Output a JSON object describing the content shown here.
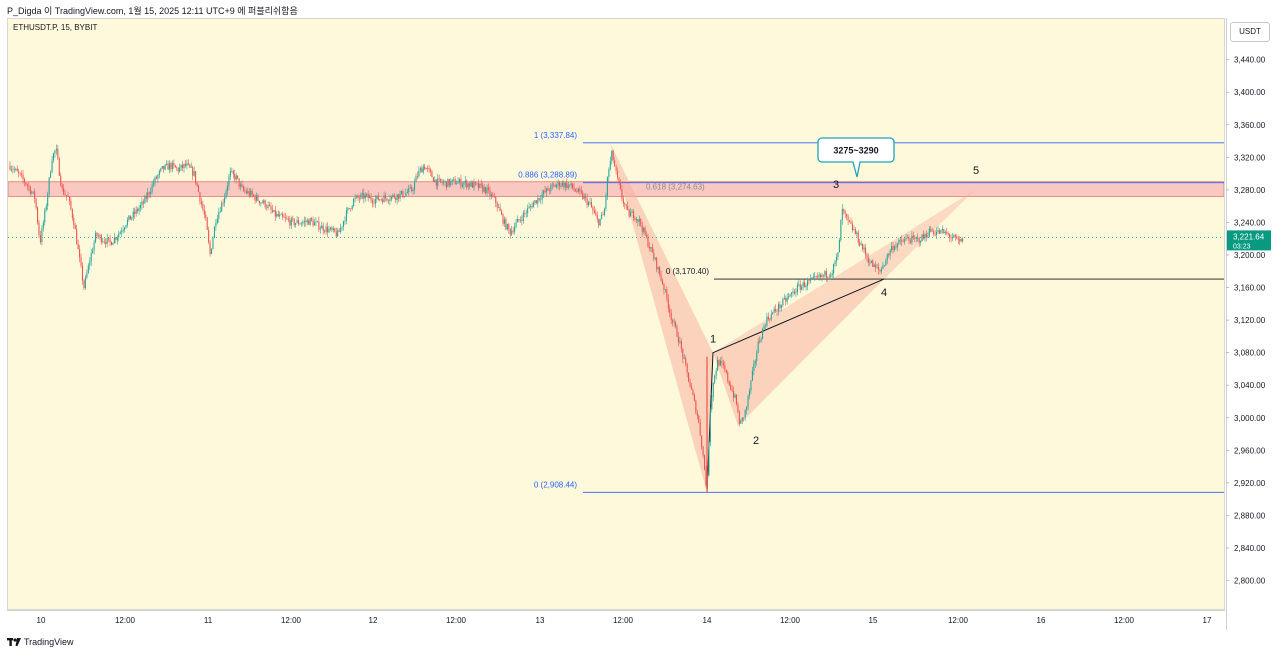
{
  "header": {
    "attribution": "P_Digda 이 TradingView.com, 1월 15, 2025 12:11 UTC+9 에 퍼블리쉬함음"
  },
  "symbol_label": "ETHUSDT.P, 15, BYBIT",
  "currency_button": "USDT",
  "footer": {
    "brand": "TradingView"
  },
  "last_price": {
    "value": "3,221.64",
    "countdown": "03:23",
    "color": "#089981"
  },
  "callout": {
    "label": "3275~3290",
    "border_color": "#21a4b8"
  },
  "colors": {
    "pane_bg": "#fff9dc",
    "up": "#26a69a",
    "down": "#ef5350",
    "fib": "#2962ff",
    "zone": "#f7b7b7",
    "pattern": "#f8b3a0"
  },
  "chart_data": {
    "type": "candlestick",
    "title": "",
    "ylim": [
      2765,
      3490
    ],
    "y_ticks": [
      2800,
      2840,
      2880,
      2920,
      2960,
      3000,
      3040,
      3080,
      3120,
      3160,
      3200,
      3240,
      3280,
      3320,
      3360,
      3400,
      3440
    ],
    "y_tick_labels": [
      "2,800.00",
      "2,840.00",
      "2,880.00",
      "2,920.00",
      "2,960.00",
      "3,000.00",
      "3,040.00",
      "3,080.00",
      "3,120.00",
      "3,160.00",
      "3,200.00",
      "3,240.00",
      "3,280.00",
      "3,320.00",
      "3,360.00",
      "3,400.00",
      "3,440.00"
    ],
    "x_ticks": [
      {
        "label": "10",
        "t": 31
      },
      {
        "label": "12:00",
        "t": 115
      },
      {
        "label": "11",
        "t": 198
      },
      {
        "label": "12:00",
        "t": 281
      },
      {
        "label": "12",
        "t": 363
      },
      {
        "label": "12:00",
        "t": 446
      },
      {
        "label": "13",
        "t": 530
      },
      {
        "label": "12:00",
        "t": 613
      },
      {
        "label": "14",
        "t": 697
      },
      {
        "label": "12:00",
        "t": 780
      },
      {
        "label": "15",
        "t": 863
      },
      {
        "label": "12:00",
        "t": 948
      },
      {
        "label": "16",
        "t": 1031
      },
      {
        "label": "12:00",
        "t": 1114
      },
      {
        "label": "17",
        "t": 1197
      }
    ],
    "price_path": [
      [
        0,
        3310
      ],
      [
        8,
        3300
      ],
      [
        18,
        3285
      ],
      [
        25,
        3270
      ],
      [
        30,
        3215
      ],
      [
        36,
        3260
      ],
      [
        42,
        3320
      ],
      [
        46,
        3330
      ],
      [
        52,
        3280
      ],
      [
        58,
        3270
      ],
      [
        64,
        3240
      ],
      [
        70,
        3190
      ],
      [
        74,
        3160
      ],
      [
        80,
        3195
      ],
      [
        86,
        3225
      ],
      [
        92,
        3220
      ],
      [
        100,
        3215
      ],
      [
        108,
        3225
      ],
      [
        116,
        3240
      ],
      [
        124,
        3250
      ],
      [
        134,
        3265
      ],
      [
        144,
        3290
      ],
      [
        152,
        3305
      ],
      [
        160,
        3310
      ],
      [
        168,
        3305
      ],
      [
        176,
        3310
      ],
      [
        184,
        3300
      ],
      [
        190,
        3270
      ],
      [
        196,
        3240
      ],
      [
        200,
        3200
      ],
      [
        206,
        3245
      ],
      [
        214,
        3270
      ],
      [
        220,
        3300
      ],
      [
        226,
        3295
      ],
      [
        232,
        3280
      ],
      [
        240,
        3275
      ],
      [
        248,
        3268
      ],
      [
        256,
        3262
      ],
      [
        264,
        3250
      ],
      [
        272,
        3245
      ],
      [
        282,
        3240
      ],
      [
        292,
        3240
      ],
      [
        300,
        3242
      ],
      [
        310,
        3235
      ],
      [
        320,
        3230
      ],
      [
        328,
        3225
      ],
      [
        336,
        3250
      ],
      [
        344,
        3268
      ],
      [
        354,
        3272
      ],
      [
        364,
        3268
      ],
      [
        374,
        3270
      ],
      [
        384,
        3272
      ],
      [
        394,
        3275
      ],
      [
        402,
        3280
      ],
      [
        408,
        3300
      ],
      [
        414,
        3310
      ],
      [
        420,
        3300
      ],
      [
        426,
        3290
      ],
      [
        436,
        3288
      ],
      [
        446,
        3290
      ],
      [
        456,
        3288
      ],
      [
        466,
        3285
      ],
      [
        476,
        3280
      ],
      [
        486,
        3265
      ],
      [
        494,
        3240
      ],
      [
        500,
        3228
      ],
      [
        506,
        3238
      ],
      [
        514,
        3250
      ],
      [
        522,
        3262
      ],
      [
        530,
        3272
      ],
      [
        540,
        3282
      ],
      [
        550,
        3288
      ],
      [
        560,
        3285
      ],
      [
        570,
        3275
      ],
      [
        580,
        3262
      ],
      [
        588,
        3240
      ],
      [
        594,
        3250
      ],
      [
        598,
        3300
      ],
      [
        602,
        3325
      ],
      [
        606,
        3300
      ],
      [
        612,
        3270
      ],
      [
        618,
        3250
      ],
      [
        624,
        3250
      ],
      [
        630,
        3240
      ],
      [
        638,
        3215
      ],
      [
        646,
        3190
      ],
      [
        654,
        3160
      ],
      [
        662,
        3120
      ],
      [
        668,
        3100
      ],
      [
        676,
        3060
      ],
      [
        682,
        3030
      ],
      [
        688,
        3000
      ],
      [
        692,
        2965
      ],
      [
        697,
        2910
      ],
      [
        700,
        3010
      ],
      [
        704,
        3050
      ],
      [
        708,
        3070
      ],
      [
        714,
        3060
      ],
      [
        720,
        3040
      ],
      [
        726,
        3020
      ],
      [
        730,
        2990
      ],
      [
        736,
        3010
      ],
      [
        742,
        3050
      ],
      [
        748,
        3090
      ],
      [
        756,
        3120
      ],
      [
        764,
        3130
      ],
      [
        772,
        3140
      ],
      [
        780,
        3150
      ],
      [
        788,
        3160
      ],
      [
        796,
        3165
      ],
      [
        806,
        3170
      ],
      [
        814,
        3175
      ],
      [
        822,
        3180
      ],
      [
        828,
        3200
      ],
      [
        832,
        3255
      ],
      [
        838,
        3240
      ],
      [
        844,
        3230
      ],
      [
        852,
        3210
      ],
      [
        858,
        3195
      ],
      [
        864,
        3185
      ],
      [
        870,
        3180
      ],
      [
        876,
        3195
      ],
      [
        882,
        3210
      ],
      [
        890,
        3215
      ],
      [
        898,
        3220
      ],
      [
        906,
        3218
      ],
      [
        914,
        3222
      ],
      [
        920,
        3230
      ],
      [
        926,
        3228
      ],
      [
        932,
        3228
      ],
      [
        938,
        3225
      ],
      [
        944,
        3220
      ],
      [
        950,
        3215
      ],
      [
        954,
        3221.64
      ]
    ],
    "resistance_zone": {
      "low": 3272,
      "high": 3290
    },
    "fibonacci": {
      "levels": [
        {
          "ratio_label": "1 (3,337.84)",
          "price": 3337.84
        },
        {
          "ratio_label": "0.886 (3,288.89)",
          "price": 3288.89
        },
        {
          "ratio_label": "0.618 (3,274.63)",
          "price": 3274.63
        },
        {
          "ratio_label": "0 (3,170.40)",
          "price": 3170.4
        },
        {
          "ratio_label": "0 (2,908.44)",
          "price": 2908.44
        }
      ]
    },
    "harmonic_pattern": {
      "X": {
        "t": 600,
        "price": 3337.84
      },
      "A": {
        "t": 697,
        "price": 2908.44
      },
      "B": {
        "t": 703,
        "price": 3080
      },
      "C": {
        "t": 728,
        "price": 2990
      },
      "D": {
        "t": 874,
        "price": 3170.4
      },
      "E": {
        "t": 965,
        "price": 3280
      }
    },
    "wave_labels": [
      {
        "label": "1",
        "t": 703,
        "price": 3080
      },
      {
        "label": "2",
        "t": 724,
        "price": 2990
      },
      {
        "label": "3",
        "t": 828,
        "price": 3255
      },
      {
        "label": "4",
        "t": 874,
        "price": 3170.4
      },
      {
        "label": "5",
        "t": 962,
        "price": 3280
      }
    ]
  }
}
